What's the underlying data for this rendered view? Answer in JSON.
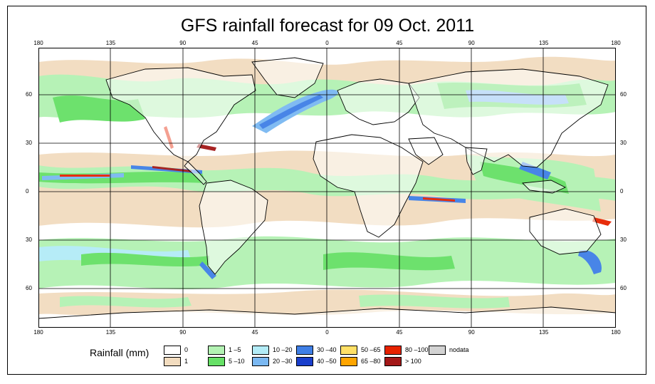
{
  "title": "GFS rainfall forecast for 09 Oct. 2011",
  "axes": {
    "lon_ticks": [
      "180",
      "135",
      "90",
      "45",
      "0",
      "45",
      "90",
      "135",
      "180"
    ],
    "lat_ticks": [
      "60",
      "30",
      "0",
      "30",
      "60"
    ]
  },
  "legend": {
    "title": "Rainfall (mm)",
    "items": [
      {
        "label": "0",
        "color": "#ffffff"
      },
      {
        "label": "1",
        "color": "#f2dcbf"
      },
      {
        "label": "1 –5",
        "color": "#b3f2b3"
      },
      {
        "label": "5 –10",
        "color": "#66e066"
      },
      {
        "label": "10 –20",
        "color": "#b3ecf7"
      },
      {
        "label": "20 –30",
        "color": "#7ab8f2"
      },
      {
        "label": "30 –40",
        "color": "#3f7fe6"
      },
      {
        "label": "40 –50",
        "color": "#1a3fcc"
      },
      {
        "label": "50 –65",
        "color": "#ffe066"
      },
      {
        "label": "65 –80",
        "color": "#ffa500"
      },
      {
        "label": "80 –100",
        "color": "#e62200"
      },
      {
        "label": "> 100",
        "color": "#a31818"
      },
      {
        "label": "nodata",
        "color": "#d3d3d3"
      }
    ]
  }
}
